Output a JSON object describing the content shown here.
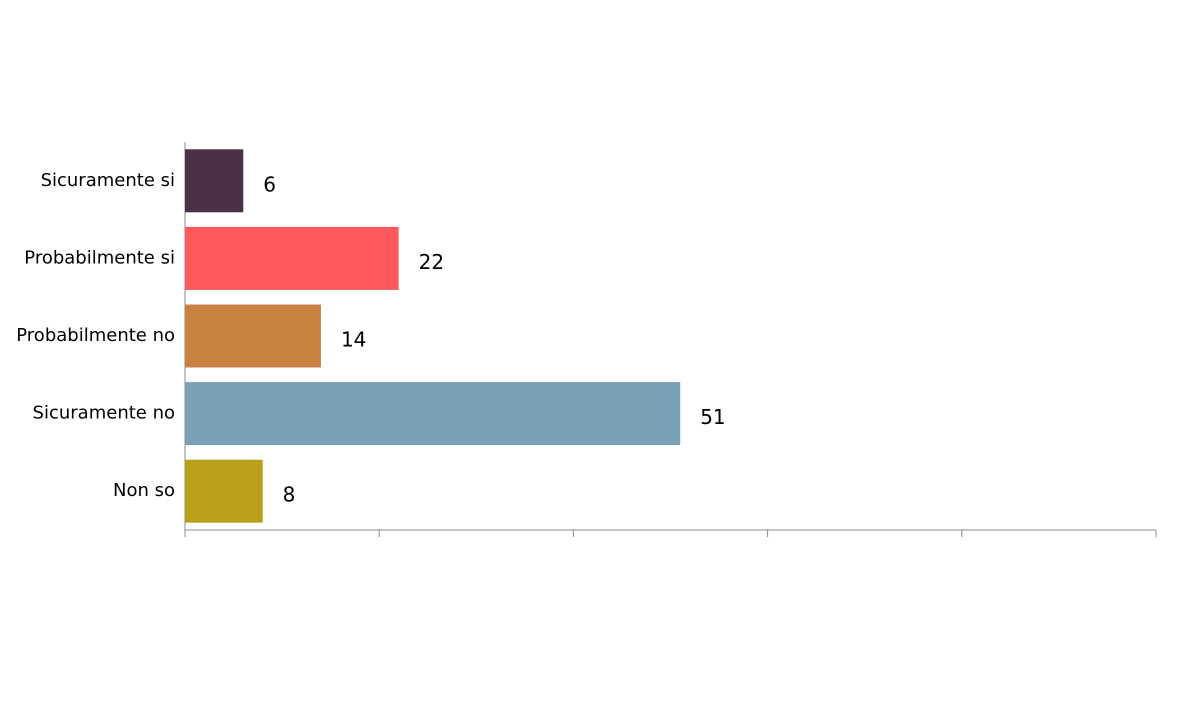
{
  "chart_data": {
    "type": "barh",
    "categories": [
      "Sicuramente si",
      "Probabilmente si",
      "Probabilmente no",
      "Sicuramente no",
      "Non so"
    ],
    "values": [
      6,
      22,
      14,
      51,
      8
    ],
    "colors": [
      "#4b3049",
      "#ff585d",
      "#c88242",
      "#7aa0b5",
      "#b8a019"
    ],
    "xlim": [
      0,
      100
    ],
    "xticks": [
      0,
      20,
      40,
      60,
      80,
      100
    ]
  }
}
